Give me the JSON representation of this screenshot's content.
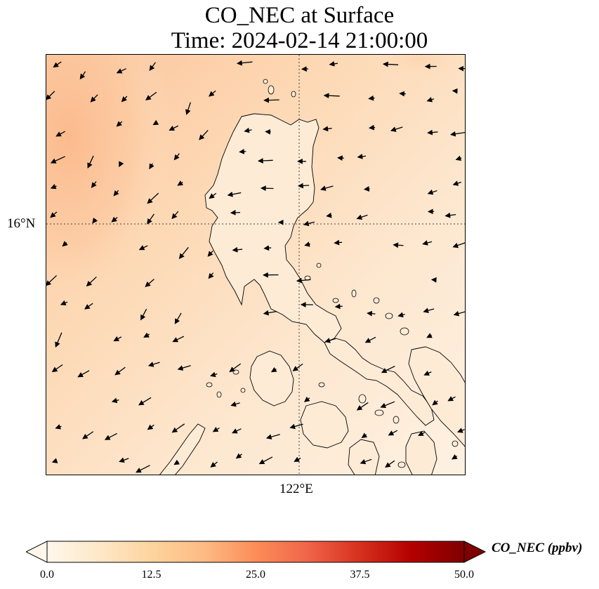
{
  "title": {
    "line1": "CO_NEC at Surface",
    "line2": "Time: 2024-02-14 21:00:00"
  },
  "axes": {
    "lat_label": "16°N",
    "lon_label": "122°E",
    "gridlines": "dotted"
  },
  "colorbar": {
    "label": "CO_NEC (ppbv)",
    "ticks": [
      "0.0",
      "12.5",
      "25.0",
      "37.5",
      "50.0"
    ],
    "min": 0,
    "max": 50,
    "extend": "both",
    "colormap": [
      "#fff7ec",
      "#fee8c8",
      "#fdd49e",
      "#fdbb84",
      "#fc8d59",
      "#ef6548",
      "#d7301f",
      "#b30000",
      "#7f0000"
    ]
  },
  "map": {
    "ocean_fill": "#fde6cc",
    "land_fill": "#fdebd6",
    "high_concentration_fill": "#fbc79a",
    "coastline_color": "#000000",
    "wind_arrows": "black-arrows"
  }
}
